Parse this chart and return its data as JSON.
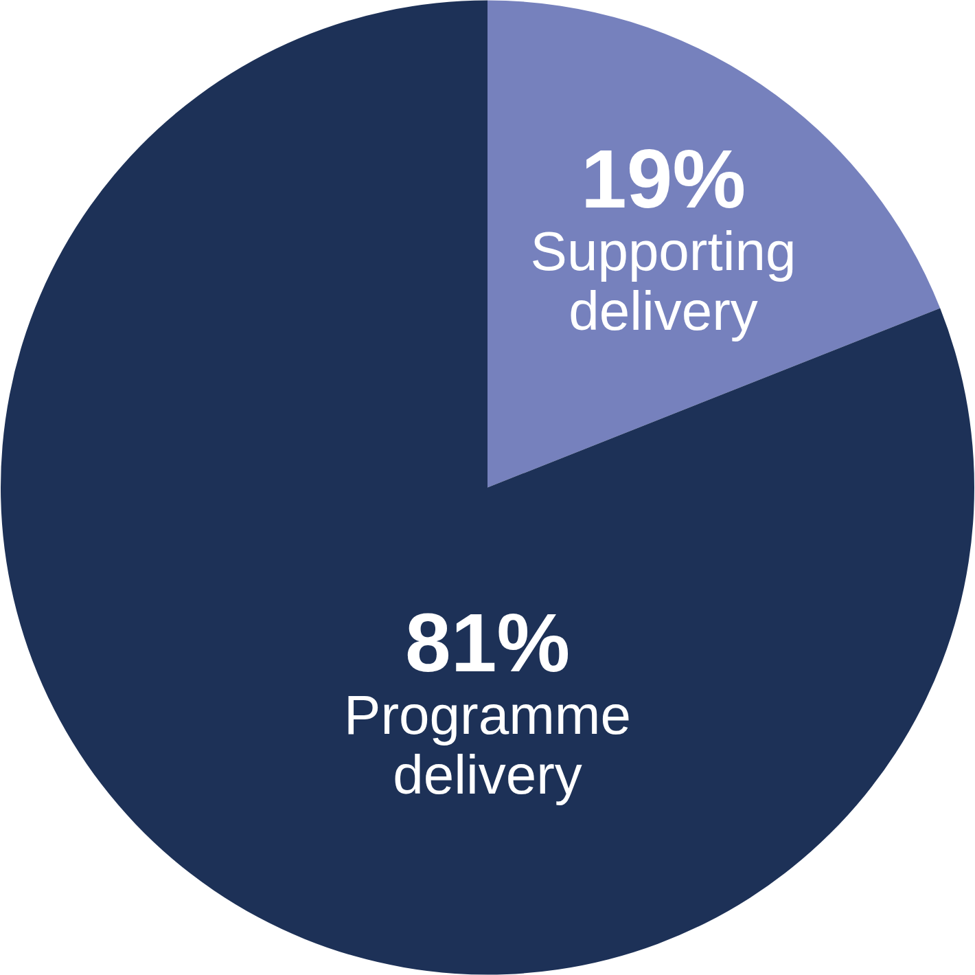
{
  "chart_data": {
    "type": "pie",
    "categories": [
      "Supporting delivery",
      "Programme delivery"
    ],
    "values": [
      19,
      81
    ],
    "colors": [
      "#7681bd",
      "#1d3157"
    ],
    "value_labels": [
      "19%",
      "81%"
    ]
  }
}
